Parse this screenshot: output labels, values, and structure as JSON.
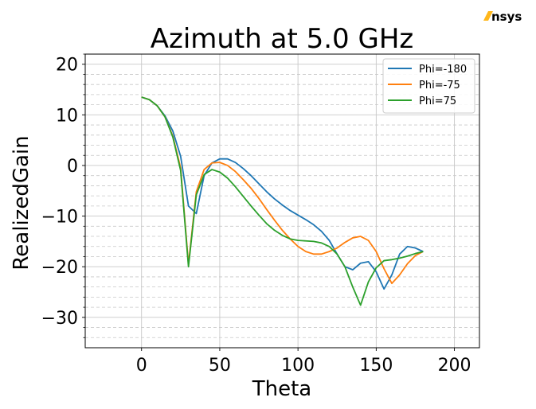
{
  "logo": {
    "text": "nsys",
    "accent_color": "#ffb71b"
  },
  "chart_data": {
    "type": "line",
    "title": "Azimuth at 5.0 GHz",
    "xlabel": "Theta",
    "ylabel": "RealizedGain",
    "xlim": [
      -36,
      216
    ],
    "ylim": [
      -36,
      22
    ],
    "xticks": [
      0,
      50,
      100,
      150,
      200
    ],
    "yticks": [
      -30,
      -20,
      -10,
      0,
      10,
      20
    ],
    "grid": true,
    "legend_position": "top-right",
    "series": [
      {
        "name": "Phi=-180",
        "color": "#1f77b4",
        "x": [
          0,
          5,
          10,
          15,
          20,
          25,
          30,
          35,
          40,
          45,
          50,
          55,
          60,
          65,
          70,
          75,
          80,
          85,
          90,
          95,
          100,
          105,
          110,
          115,
          120,
          125,
          130,
          135,
          140,
          145,
          150,
          155,
          160,
          165,
          170,
          175,
          180
        ],
        "values": [
          13.5,
          13.0,
          11.8,
          9.8,
          6.8,
          1.8,
          -8.0,
          -9.5,
          -2.0,
          0.5,
          1.3,
          1.3,
          0.6,
          -0.6,
          -2.0,
          -3.6,
          -5.2,
          -6.6,
          -7.8,
          -8.9,
          -9.8,
          -10.7,
          -11.7,
          -13.0,
          -14.8,
          -17.5,
          -20.0,
          -20.6,
          -19.3,
          -19.0,
          -21.0,
          -24.4,
          -21.6,
          -17.5,
          -16.0,
          -16.3,
          -17.0
        ]
      },
      {
        "name": "Phi=-75",
        "color": "#ff7f0e",
        "x": [
          0,
          5,
          10,
          15,
          20,
          25,
          30,
          35,
          40,
          45,
          50,
          55,
          60,
          65,
          70,
          75,
          80,
          85,
          90,
          95,
          100,
          105,
          110,
          115,
          120,
          125,
          130,
          135,
          140,
          145,
          150,
          155,
          160,
          165,
          170,
          175,
          180
        ],
        "values": [
          13.5,
          13.0,
          11.8,
          9.6,
          5.8,
          -0.5,
          -19.5,
          -5.2,
          -0.8,
          0.5,
          0.6,
          0.0,
          -1.2,
          -2.8,
          -4.5,
          -6.5,
          -8.7,
          -10.8,
          -12.8,
          -14.5,
          -16.0,
          -17.0,
          -17.5,
          -17.5,
          -17.0,
          -16.3,
          -15.2,
          -14.3,
          -14.0,
          -14.8,
          -17.0,
          -20.4,
          -23.3,
          -21.6,
          -19.4,
          -17.8,
          -17.0
        ]
      },
      {
        "name": "Phi=75",
        "color": "#2ca02c",
        "x": [
          0,
          5,
          10,
          15,
          20,
          25,
          30,
          35,
          40,
          45,
          50,
          55,
          60,
          65,
          70,
          75,
          80,
          85,
          90,
          95,
          100,
          105,
          110,
          115,
          120,
          125,
          130,
          135,
          140,
          145,
          150,
          155,
          160,
          165,
          170,
          175,
          180
        ],
        "values": [
          13.5,
          13.0,
          11.8,
          9.6,
          5.6,
          -1.0,
          -20.0,
          -5.8,
          -1.8,
          -0.8,
          -1.3,
          -2.5,
          -4.2,
          -6.1,
          -8.0,
          -9.8,
          -11.5,
          -12.8,
          -13.8,
          -14.5,
          -14.8,
          -14.9,
          -15.0,
          -15.3,
          -16.0,
          -17.5,
          -20.0,
          -24.0,
          -27.6,
          -23.0,
          -20.2,
          -18.8,
          -18.6,
          -18.3,
          -17.9,
          -17.4,
          -17.0
        ]
      }
    ]
  }
}
